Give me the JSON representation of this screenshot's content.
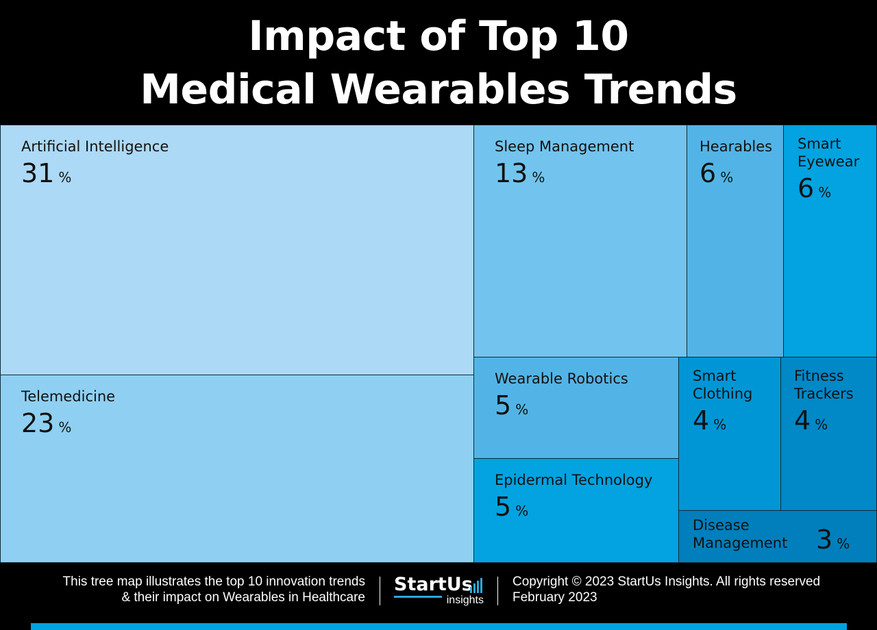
{
  "title": {
    "line1": "Impact of Top 10",
    "line2": "Medical Wearables Trends"
  },
  "chart_data": {
    "type": "treemap",
    "unit": "%",
    "items": [
      {
        "name": "Artificial Intelligence",
        "value": 31,
        "color": "#acd9f5"
      },
      {
        "name": "Telemedicine",
        "value": 23,
        "color": "#8fd0f2"
      },
      {
        "name": "Sleep Management",
        "value": 13,
        "color": "#72c4ee"
      },
      {
        "name": "Hearables",
        "value": 6,
        "color": "#52b4e6"
      },
      {
        "name": "Smart Eyewear",
        "value": 6,
        "color": "#02a3e0"
      },
      {
        "name": "Wearable Robotics",
        "value": 5,
        "color": "#52b4e6"
      },
      {
        "name": "Epidermal Technology",
        "value": 5,
        "color": "#02a3e0"
      },
      {
        "name": "Smart Clothing",
        "value": 4,
        "color": "#0096d6"
      },
      {
        "name": "Fitness Trackers",
        "value": 4,
        "color": "#0088c7"
      },
      {
        "name": "Disease Management",
        "value": 3,
        "color": "#007fbc"
      }
    ]
  },
  "footer": {
    "caption_line1": "This tree map illustrates the top 10 innovation trends",
    "caption_line2": "& their impact on Wearables in Healthcare",
    "logo_brand": "StartUs",
    "logo_sub": "insights",
    "copyright": "Copyright © 2023 StartUs Insights. All rights reserved",
    "date": "February 2023"
  }
}
